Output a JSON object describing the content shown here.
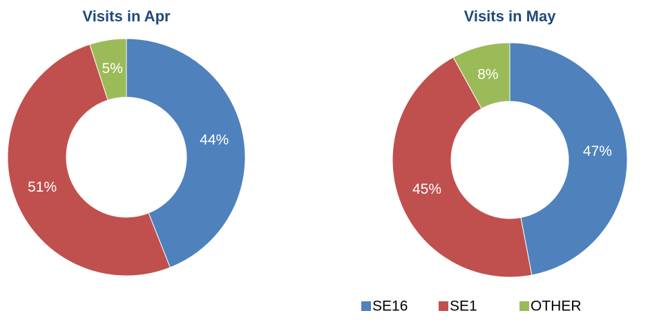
{
  "chart_data": [
    {
      "type": "donut",
      "title": "Visits in Apr",
      "categories": [
        "SE16",
        "SE1",
        "OTHER"
      ],
      "values": [
        44,
        51,
        5
      ],
      "colors": [
        "#4f81bd",
        "#c0504d",
        "#9bbb59"
      ]
    },
    {
      "type": "donut",
      "title": "Visits in May",
      "categories": [
        "SE16",
        "SE1",
        "OTHER"
      ],
      "values": [
        47,
        45,
        8
      ],
      "colors": [
        "#4f81bd",
        "#c0504d",
        "#9bbb59"
      ],
      "legend": "bottom-right"
    }
  ]
}
